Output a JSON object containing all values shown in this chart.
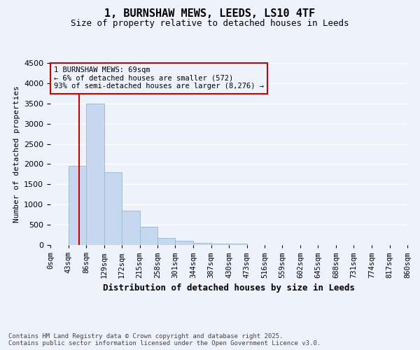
{
  "title_line1": "1, BURNSHAW MEWS, LEEDS, LS10 4TF",
  "title_line2": "Size of property relative to detached houses in Leeds",
  "xlabel": "Distribution of detached houses by size in Leeds",
  "ylabel": "Number of detached properties",
  "footnote": "Contains HM Land Registry data © Crown copyright and database right 2025.\nContains public sector information licensed under the Open Government Licence v3.0.",
  "bin_edges": [
    0,
    43,
    86,
    129,
    172,
    215,
    258,
    301,
    344,
    387,
    430,
    473,
    516,
    559,
    602,
    645,
    688,
    731,
    774,
    817,
    860
  ],
  "bar_heights": [
    0,
    1950,
    3500,
    1800,
    850,
    450,
    170,
    100,
    60,
    40,
    40,
    0,
    0,
    0,
    0,
    0,
    0,
    0,
    0,
    0
  ],
  "bar_color": "#c5d8f0",
  "bar_edgecolor": "#a0bcd8",
  "property_size": 69,
  "red_line_color": "#cc0000",
  "annotation_text": "1 BURNSHAW MEWS: 69sqm\n← 6% of detached houses are smaller (572)\n93% of semi-detached houses are larger (8,276) →",
  "ylim": [
    0,
    4500
  ],
  "yticks": [
    0,
    500,
    1000,
    1500,
    2000,
    2500,
    3000,
    3500,
    4000,
    4500
  ],
  "background_color": "#eef2fb",
  "grid_color": "#ffffff",
  "tick_labels": [
    "0sqm",
    "43sqm",
    "86sqm",
    "129sqm",
    "172sqm",
    "215sqm",
    "258sqm",
    "301sqm",
    "344sqm",
    "387sqm",
    "430sqm",
    "473sqm",
    "516sqm",
    "559sqm",
    "602sqm",
    "645sqm",
    "688sqm",
    "731sqm",
    "774sqm",
    "817sqm",
    "860sqm"
  ]
}
